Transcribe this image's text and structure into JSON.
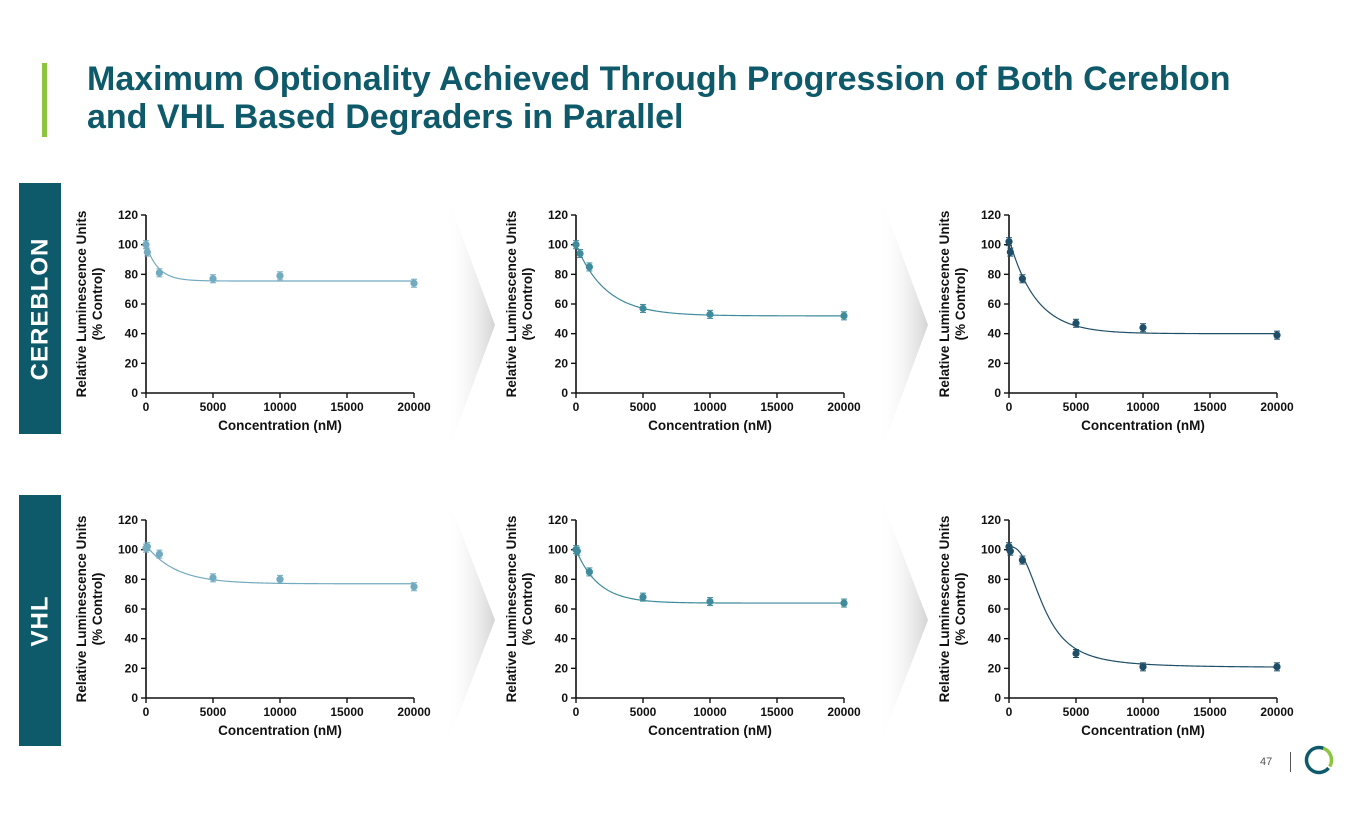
{
  "page": {
    "title": "Maximum Optionality Achieved Through Progression of Both Cereblon and VHL Based Degraders in Parallel",
    "page_number": "47",
    "accent_color": "#8cc63f",
    "brand_color": "#0e5a6a"
  },
  "rows": {
    "cereblon": {
      "label": "CEREBLON"
    },
    "vhl": {
      "label": "VHL"
    }
  },
  "chart_data": [
    {
      "id": "cereblon-1",
      "type": "scatter",
      "xlabel": "Concentration (nM)",
      "ylabel": "Relative Luminescence Units",
      "ylabel2": "(% Control)",
      "xlim": [
        0,
        20000
      ],
      "ylim": [
        0,
        120
      ],
      "x_ticks": [
        "0",
        "5000",
        "10000",
        "15000",
        "20000"
      ],
      "y_ticks": [
        "0",
        "20",
        "40",
        "60",
        "80",
        "100",
        "120"
      ],
      "color": "#72aac0",
      "points": [
        {
          "x": 0,
          "y": 100
        },
        {
          "x": 100,
          "y": 95
        },
        {
          "x": 1000,
          "y": 81
        },
        {
          "x": 5000,
          "y": 77
        },
        {
          "x": 10000,
          "y": 79
        },
        {
          "x": 20000,
          "y": 74
        }
      ],
      "fit": {
        "top": 100,
        "bottom": 75.5,
        "k": 0.0011
      }
    },
    {
      "id": "cereblon-2",
      "type": "scatter",
      "xlabel": "Concentration (nM)",
      "ylabel": "Relative Luminescence Units",
      "ylabel2": "(% Control)",
      "xlim": [
        0,
        20000
      ],
      "ylim": [
        0,
        120
      ],
      "x_ticks": [
        "0",
        "5000",
        "10000",
        "15000",
        "20000"
      ],
      "y_ticks": [
        "0",
        "20",
        "40",
        "60",
        "80",
        "100",
        "120"
      ],
      "color": "#3e8b9c",
      "points": [
        {
          "x": 0,
          "y": 100
        },
        {
          "x": 300,
          "y": 94
        },
        {
          "x": 1000,
          "y": 85
        },
        {
          "x": 5000,
          "y": 57
        },
        {
          "x": 10000,
          "y": 53
        },
        {
          "x": 20000,
          "y": 52
        }
      ],
      "fit": {
        "top": 100,
        "bottom": 52,
        "k": 0.00045
      }
    },
    {
      "id": "cereblon-3",
      "type": "scatter",
      "xlabel": "Concentration (nM)",
      "ylabel": "Relative Luminescence Units",
      "ylabel2": "(% Control)",
      "xlim": [
        0,
        20000
      ],
      "ylim": [
        0,
        120
      ],
      "x_ticks": [
        "0",
        "5000",
        "10000",
        "15000",
        "20000"
      ],
      "y_ticks": [
        "0",
        "20",
        "40",
        "60",
        "80",
        "100",
        "120"
      ],
      "color": "#1f4f68",
      "points": [
        {
          "x": 0,
          "y": 102
        },
        {
          "x": 100,
          "y": 95
        },
        {
          "x": 1000,
          "y": 77
        },
        {
          "x": 5000,
          "y": 47
        },
        {
          "x": 10000,
          "y": 44
        },
        {
          "x": 20000,
          "y": 39
        }
      ],
      "fit": {
        "top": 104,
        "bottom": 40,
        "k": 0.0005
      }
    },
    {
      "id": "vhl-1",
      "type": "scatter",
      "xlabel": "Concentration (nM)",
      "ylabel": "Relative Luminescence Units",
      "ylabel2": "(% Control)",
      "xlim": [
        0,
        20000
      ],
      "ylim": [
        0,
        120
      ],
      "x_ticks": [
        "0",
        "5000",
        "10000",
        "15000",
        "20000"
      ],
      "y_ticks": [
        "0",
        "20",
        "40",
        "60",
        "80",
        "100",
        "120"
      ],
      "color": "#72aac0",
      "points": [
        {
          "x": 0,
          "y": 101
        },
        {
          "x": 100,
          "y": 102
        },
        {
          "x": 1000,
          "y": 97
        },
        {
          "x": 5000,
          "y": 81
        },
        {
          "x": 10000,
          "y": 80
        },
        {
          "x": 20000,
          "y": 75
        }
      ],
      "fit": {
        "top": 103,
        "bottom": 77,
        "k": 0.00045
      }
    },
    {
      "id": "vhl-2",
      "type": "scatter",
      "xlabel": "Concentration (nM)",
      "ylabel": "Relative Luminescence Units",
      "ylabel2": "(% Control)",
      "xlim": [
        0,
        20000
      ],
      "ylim": [
        0,
        120
      ],
      "x_ticks": [
        "0",
        "5000",
        "10000",
        "15000",
        "20000"
      ],
      "y_ticks": [
        "0",
        "20",
        "40",
        "60",
        "80",
        "100",
        "120"
      ],
      "color": "#3e8b9c",
      "points": [
        {
          "x": 0,
          "y": 100
        },
        {
          "x": 100,
          "y": 99
        },
        {
          "x": 1000,
          "y": 85
        },
        {
          "x": 5000,
          "y": 68
        },
        {
          "x": 10000,
          "y": 65
        },
        {
          "x": 20000,
          "y": 64
        }
      ],
      "fit": {
        "top": 100,
        "bottom": 64,
        "k": 0.0006
      }
    },
    {
      "id": "vhl-3",
      "type": "scatter",
      "xlabel": "Concentration (nM)",
      "ylabel": "Relative Luminescence Units",
      "ylabel2": "(% Control)",
      "xlim": [
        0,
        20000
      ],
      "ylim": [
        0,
        120
      ],
      "x_ticks": [
        "0",
        "5000",
        "10000",
        "15000",
        "20000"
      ],
      "y_ticks": [
        "0",
        "20",
        "40",
        "60",
        "80",
        "100",
        "120"
      ],
      "color": "#1f4f68",
      "points": [
        {
          "x": 0,
          "y": 102
        },
        {
          "x": 100,
          "y": 99
        },
        {
          "x": 1000,
          "y": 93
        },
        {
          "x": 5000,
          "y": 30
        },
        {
          "x": 10000,
          "y": 21
        },
        {
          "x": 20000,
          "y": 21
        }
      ],
      "fit": {
        "top": 102,
        "bottom": 20.5,
        "k": 0.00085,
        "delay": 1000
      }
    }
  ]
}
